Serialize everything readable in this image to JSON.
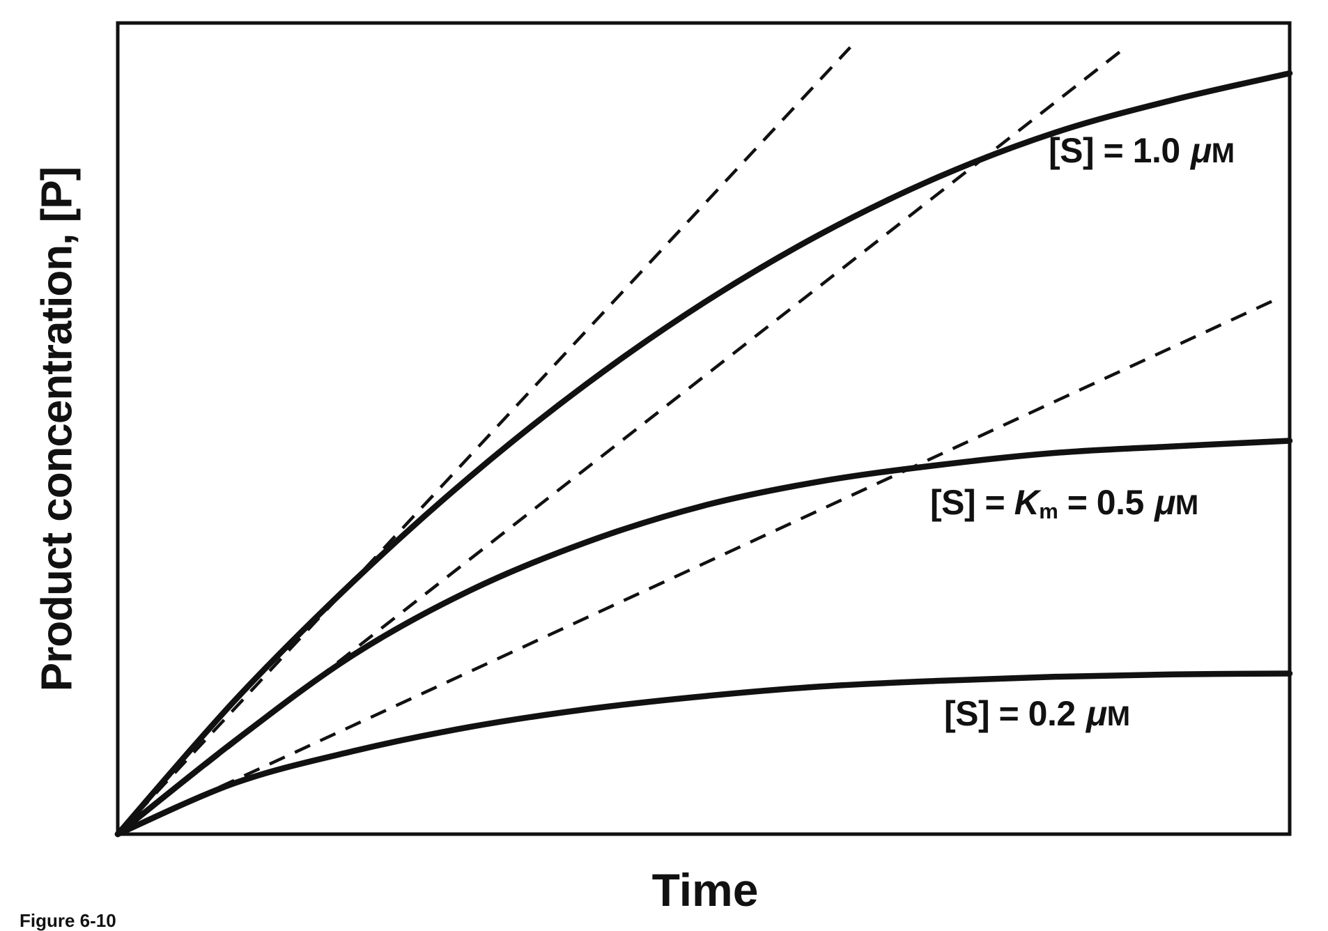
{
  "figure": {
    "caption": "Figure 6-10"
  },
  "colors": {
    "line": "#111111",
    "background": "#ffffff",
    "text": "#111111"
  },
  "labels": {
    "s10": {
      "pre": "[S] = 1.0 ",
      "mu": "μ",
      "unit": "M"
    },
    "s05": {
      "pre": "[S] = ",
      "k": "K",
      "ksub": "m",
      "mid": " = 0.5 ",
      "mu": "μ",
      "unit": "M"
    },
    "s02": {
      "pre": "[S] = 0.2 ",
      "mu": "μ",
      "unit": "M"
    }
  },
  "chart_data": {
    "type": "line",
    "title": "",
    "xlabel": "Time",
    "ylabel": "Product concentration, [P]",
    "x_range": [
      0,
      10
    ],
    "y_range": [
      0,
      1
    ],
    "grid": false,
    "axis_ticks": "none",
    "legend": "inline labels next to each curve",
    "description": "Enzyme reaction progress curves: product concentration [P] versus time for three substrate concentrations; dashed lines are initial-velocity tangents at t = 0.",
    "series": [
      {
        "name": "progress-curve-S-1.0-uM",
        "label": "[S] = 1.0 μM",
        "line": "solid",
        "x": [
          0,
          1,
          2,
          3,
          4,
          5,
          6,
          7,
          8,
          9,
          10
        ],
        "y": [
          0,
          0.165,
          0.31,
          0.44,
          0.555,
          0.655,
          0.74,
          0.81,
          0.865,
          0.905,
          0.938
        ]
      },
      {
        "name": "progress-curve-S-Km-0.5-uM",
        "label": "[S] = Km = 0.5 μM",
        "line": "solid",
        "x": [
          0,
          1,
          2,
          3,
          4,
          5,
          6,
          7,
          8,
          9,
          10
        ],
        "y": [
          0,
          0.115,
          0.22,
          0.3,
          0.36,
          0.405,
          0.435,
          0.455,
          0.47,
          0.478,
          0.485
        ]
      },
      {
        "name": "progress-curve-S-0.2-uM",
        "label": "[S] = 0.2 μM",
        "line": "solid",
        "x": [
          0,
          1,
          2,
          3,
          4,
          5,
          6,
          7,
          8,
          9,
          10
        ],
        "y": [
          0,
          0.063,
          0.102,
          0.132,
          0.154,
          0.17,
          0.182,
          0.189,
          0.194,
          0.197,
          0.198
        ]
      }
    ],
    "tangents": [
      {
        "name": "initial-velocity-tangent-S-1.0",
        "line": "dashed",
        "from": [
          0,
          0
        ],
        "to": [
          6.25,
          0.97
        ]
      },
      {
        "name": "initial-velocity-tangent-S-0.5",
        "line": "dashed",
        "from": [
          0,
          0
        ],
        "to": [
          8.6,
          0.97
        ]
      },
      {
        "name": "initial-velocity-tangent-S-0.2",
        "line": "dashed",
        "from": [
          0,
          0
        ],
        "to": [
          9.85,
          0.657
        ]
      }
    ]
  }
}
